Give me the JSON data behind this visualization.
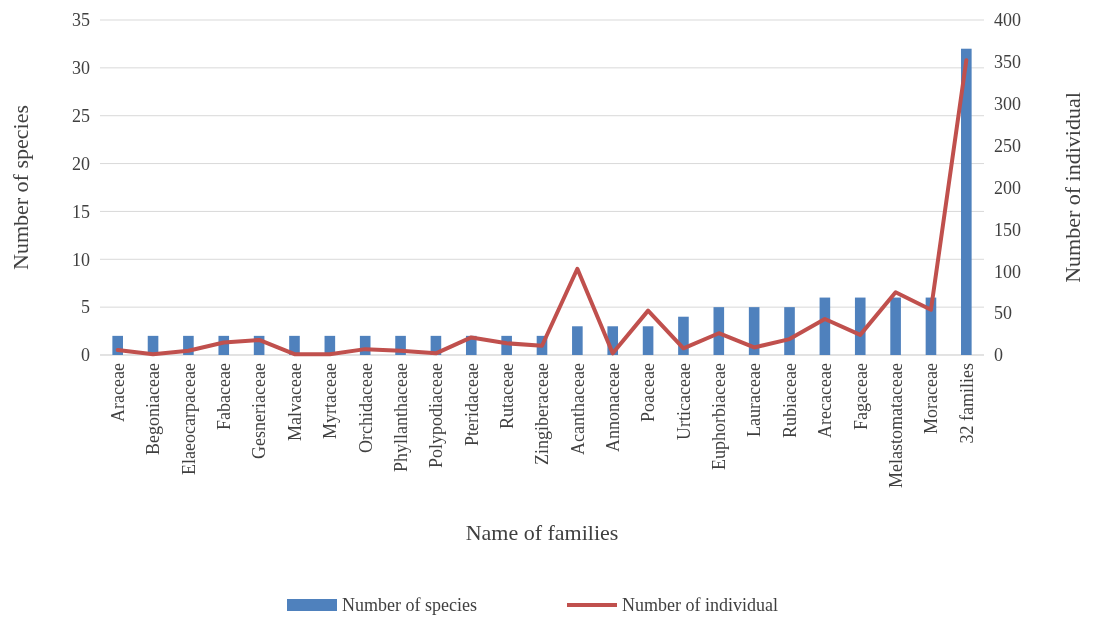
{
  "chart_data": {
    "type": "bar",
    "xlabel": "Name of families",
    "ylabel": "Number of species",
    "y2label": "Number of individual",
    "categories": [
      "Araceae",
      "Begoniaceae",
      "Elaeocarpaceae",
      "Fabaceae",
      "Gesneriaceae",
      "Malvaceae",
      "Myrtaceae",
      "Orchidaceae",
      "Phyllanthaceae",
      "Polypodiaceae",
      "Pteridaceae",
      "Rutaceae",
      "Zingiberaceae",
      "Acanthaceae",
      "Annonaceae",
      "Poaceae",
      "Urticaceae",
      "Euphorbiaceae",
      "Lauraceae",
      "Rubiaceae",
      "Arecaceae",
      "Fagaceae",
      "Melastomataceae",
      "Moraceae",
      "32 families"
    ],
    "series": [
      {
        "name": "Number of species",
        "color": "#4f81bd",
        "values": [
          2,
          2,
          2,
          2,
          2,
          2,
          2,
          2,
          2,
          2,
          2,
          2,
          2,
          3,
          3,
          3,
          4,
          5,
          5,
          5,
          6,
          6,
          6,
          6,
          32
        ]
      },
      {
        "name": "Number of individual",
        "type": "line",
        "axis": "y2",
        "color": "#c0504d",
        "values": [
          6,
          1,
          5,
          15,
          18,
          1,
          1,
          7,
          5,
          2,
          21,
          14,
          11,
          103,
          2,
          53,
          8,
          26,
          9,
          19,
          43,
          24,
          75,
          54,
          352
        ]
      }
    ],
    "ylim": [
      0,
      35
    ],
    "yticks": [
      0,
      5,
      10,
      15,
      20,
      25,
      30,
      35
    ],
    "y2lim": [
      0,
      400
    ],
    "y2ticks": [
      0,
      50,
      100,
      150,
      200,
      250,
      300,
      350,
      400
    ],
    "grid": "y",
    "legend": "bottom",
    "marker": "none",
    "line_style": "solid"
  }
}
